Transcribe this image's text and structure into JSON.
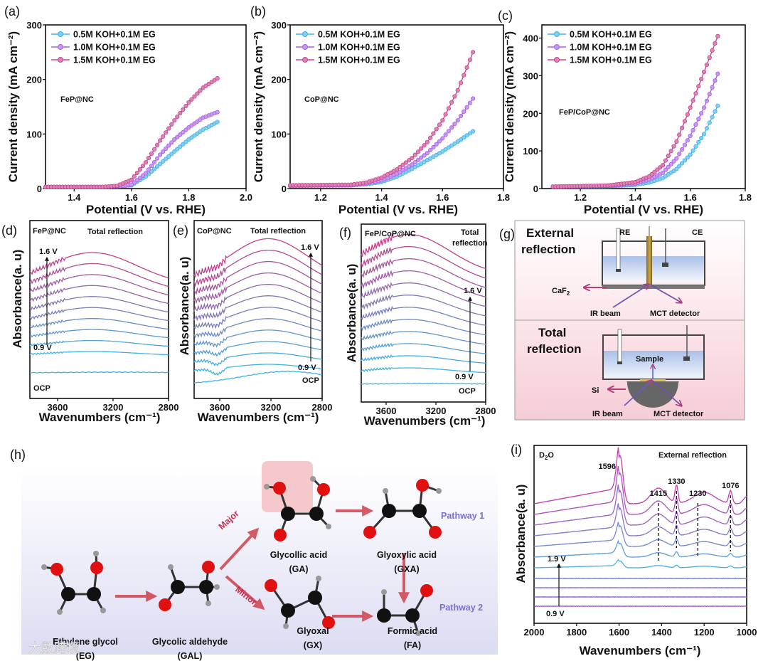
{
  "colors": {
    "c05": "#3fb4e8",
    "c10": "#a860e8",
    "c15": "#c8428e",
    "arrow": "#d0404c",
    "spec_low": "#3cb4e6",
    "spec_high": "#c0408a"
  },
  "chart_data": [
    {
      "id": "a",
      "panel_label": "(a)",
      "type": "line",
      "annotation": "FeP@NC",
      "xlabel": "Potential (V vs. RHE)",
      "ylabel": "Current density (mA cm⁻²)",
      "xlim": [
        1.3,
        2.0
      ],
      "ylim": [
        0,
        300
      ],
      "xticks": [
        "1.4",
        "1.6",
        "1.8",
        "2.0"
      ],
      "yticks": [
        "0",
        "100",
        "200",
        "300"
      ],
      "legend": "top-left",
      "x": [
        1.3,
        1.5,
        1.55,
        1.6,
        1.65,
        1.7,
        1.75,
        1.8,
        1.85,
        1.9
      ],
      "series": [
        {
          "name": "0.5M KOH+0.1M EG",
          "values": [
            3,
            3,
            4,
            6,
            22,
            45,
            68,
            90,
            108,
            122
          ]
        },
        {
          "name": "1.0M KOH+0.1M EG",
          "values": [
            3,
            3,
            4,
            7,
            28,
            62,
            90,
            112,
            130,
            140
          ]
        },
        {
          "name": "1.5M KOH+0.1M EG",
          "values": [
            3,
            3,
            5,
            16,
            48,
            88,
            125,
            158,
            185,
            202
          ]
        }
      ]
    },
    {
      "id": "b",
      "panel_label": "(b)",
      "type": "line",
      "annotation": "CoP@NC",
      "xlabel": "Potential (V vs. RHE)",
      "ylabel": "Current density (mA cm⁻²)",
      "xlim": [
        1.1,
        1.8
      ],
      "ylim": [
        0,
        300
      ],
      "xticks": [
        "1.2",
        "1.4",
        "1.6",
        "1.8"
      ],
      "yticks": [
        "0",
        "100",
        "200",
        "300"
      ],
      "legend": "top-left",
      "x": [
        1.1,
        1.3,
        1.35,
        1.4,
        1.45,
        1.5,
        1.55,
        1.6,
        1.65,
        1.7
      ],
      "series": [
        {
          "name": "0.5M KOH+0.1M EG",
          "values": [
            5,
            6,
            8,
            12,
            22,
            36,
            52,
            68,
            86,
            105
          ]
        },
        {
          "name": "1.0M KOH+0.1M EG",
          "values": [
            5,
            6,
            9,
            15,
            27,
            44,
            65,
            92,
            125,
            165
          ]
        },
        {
          "name": "1.5M KOH+0.1M EG",
          "values": [
            6,
            7,
            11,
            20,
            35,
            56,
            85,
            125,
            180,
            250
          ]
        }
      ]
    },
    {
      "id": "c",
      "panel_label": "(c)",
      "type": "line",
      "annotation": "FeP/CoP@NC",
      "xlabel": "Potential (V vs. RHE)",
      "ylabel": "Current density (mA cm⁻²)",
      "xlim": [
        1.06,
        1.8
      ],
      "ylim": [
        0,
        435
      ],
      "xticks": [
        "1.2",
        "1.4",
        "1.6",
        "1.8"
      ],
      "yticks": [
        "0",
        "100",
        "200",
        "300",
        "400"
      ],
      "legend": "top-left",
      "x": [
        1.1,
        1.3,
        1.4,
        1.45,
        1.5,
        1.55,
        1.6,
        1.65,
        1.7
      ],
      "series": [
        {
          "name": "0.5M KOH+0.1M EG",
          "values": [
            5,
            6,
            10,
            16,
            28,
            52,
            90,
            145,
            220
          ]
        },
        {
          "name": "1.0M KOH+0.1M EG",
          "values": [
            5,
            7,
            13,
            24,
            42,
            80,
            140,
            215,
            305
          ]
        },
        {
          "name": "1.5M KOH+0.1M EG",
          "values": [
            5,
            8,
            17,
            32,
            62,
            125,
            215,
            310,
            405
          ]
        }
      ]
    },
    {
      "id": "d",
      "panel_label": "(d)",
      "type": "line",
      "sample": "FeP@NC",
      "mode": "Total reflection",
      "xlabel": "Wavenumbers (cm⁻¹)",
      "ylabel": "Absorbance(a. u)",
      "xlim": [
        3800,
        2800
      ],
      "xticks": [
        "3600",
        "3200",
        "2800"
      ],
      "potential_low": "0.9 V",
      "potential_high": "1.6 V",
      "reference": "OCP",
      "traces": 10,
      "band_center": 3350
    },
    {
      "id": "e",
      "panel_label": "(e)",
      "type": "line",
      "sample": "CoP@NC",
      "mode": "Total reflection",
      "xlabel": "Wavenumbers (cm⁻¹)",
      "ylabel": "Absorbance(a. u)",
      "xlim": [
        3800,
        2800
      ],
      "xticks": [
        "3600",
        "3200",
        "2800"
      ],
      "potential_low": "0.9 V",
      "potential_high": "1.6 V",
      "reference": "OCP",
      "traces": 12,
      "band_center": 3220
    },
    {
      "id": "f",
      "panel_label": "(f)",
      "type": "line",
      "sample": "FeP/CoP@NC",
      "mode_line1": "Total",
      "mode_line2": "reflection",
      "xlabel": "Wavenumbers (cm⁻¹)",
      "ylabel": "Absorbance(a. u)",
      "xlim": [
        3800,
        2800
      ],
      "xticks": [
        "3600",
        "3200",
        "2800"
      ],
      "potential_low": "0.9 V",
      "potential_high": "1.6 V",
      "reference": "OCP",
      "traces": 12,
      "band_center": 3420
    },
    {
      "id": "i",
      "panel_label": "(i)",
      "type": "line",
      "solvent_pre": "D",
      "solvent_sub": "2",
      "solvent_post": "O",
      "mode": "External reflection",
      "xlabel": "Wavenumbers (cm⁻¹)",
      "ylabel": "Absorbance(a. u)",
      "xlim": [
        2000,
        1000
      ],
      "xticks": [
        "2000",
        "1800",
        "1600",
        "1400",
        "1200",
        "1000"
      ],
      "potential_low": "0.9 V",
      "potential_high": "1.9 V",
      "traces": 11,
      "peaks": [
        {
          "label": "1596",
          "x": 1596
        },
        {
          "label": "1415",
          "x": 1415
        },
        {
          "label": "1330",
          "x": 1330
        },
        {
          "label": "1230",
          "x": 1230
        },
        {
          "label": "1076",
          "x": 1076
        }
      ]
    }
  ],
  "schematic_g": {
    "panel_label": "(g)",
    "top_title_1": "External",
    "top_title_2": "reflection",
    "re": "RE",
    "ce": "CE",
    "caf2": "CaF",
    "caf2_sub": "2",
    "ir_beam": "IR beam",
    "mct": "MCT detector",
    "bottom_title_1": "Total",
    "bottom_title_2": "reflection",
    "sample": "Sample",
    "si": "Si"
  },
  "pathway_h": {
    "panel_label": "(h)",
    "eg": {
      "name": "Ethylene glycol",
      "abbr": "(EG)"
    },
    "gal": {
      "name": "Glycolic aldehyde",
      "abbr": "(GAL)"
    },
    "ga": {
      "name": "Glycollic acid",
      "abbr": "(GA)"
    },
    "gxa": {
      "name": "Glyoxylic acid",
      "abbr": "(GXA)"
    },
    "gx": {
      "name": "Glyoxal",
      "abbr": "(GX)"
    },
    "fa": {
      "name": "Formic acid",
      "abbr": "(FA)"
    },
    "major": "Major",
    "minor": "Minor",
    "pathway1": "Pathway 1",
    "pathway2": "Pathway 2"
  },
  "watermark": "大数跨境"
}
